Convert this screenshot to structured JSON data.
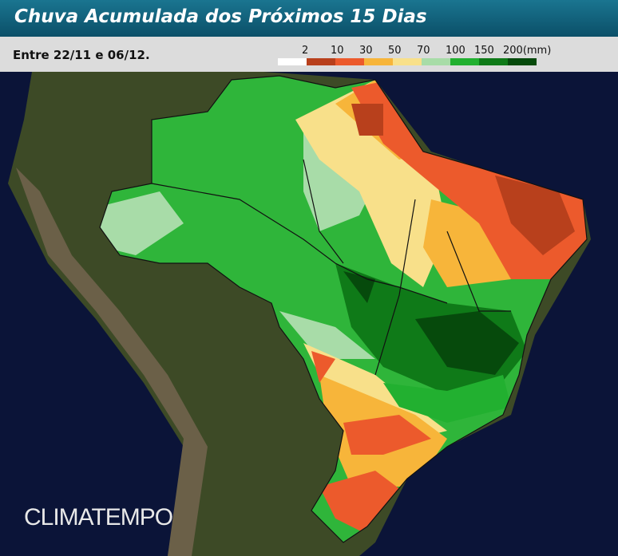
{
  "header": {
    "title": "Chuva Acumulada dos Próximos 15 Dias",
    "subtitle": "Entre 22/11 e 06/12."
  },
  "legend": {
    "labels": [
      "2",
      "10",
      "30",
      "50",
      "70",
      "100",
      "150",
      "200(mm)"
    ],
    "colors": [
      "#ffffff",
      "#b8401c",
      "#ec5a2c",
      "#f7b53a",
      "#f8e08a",
      "#a8dca8",
      "#22b030",
      "#0f7a18",
      "#064a0c"
    ]
  },
  "watermark": "CLIMATEMPO"
}
